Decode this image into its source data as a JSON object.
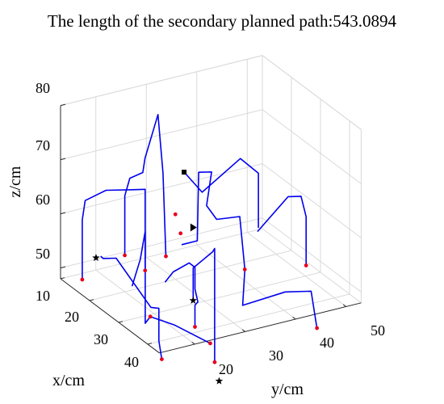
{
  "chart_data": {
    "type": "line3d",
    "title": "The length of the secondary planned path:543.0894",
    "xlabel": "x/cm",
    "ylabel": "y/cm",
    "zlabel": "z/cm",
    "xticks": [
      "10",
      "20",
      "30",
      "40"
    ],
    "yticks": [
      "20",
      "30",
      "40",
      "50"
    ],
    "zticks": [
      "50",
      "60",
      "70",
      "80"
    ],
    "grid": true,
    "colors": {
      "path": "#0000ee",
      "waypoint": "#e8001c",
      "marker": "#000000"
    },
    "path_segments": [
      [
        [
          14,
          15,
          49
        ],
        [
          14,
          15,
          60
        ],
        [
          15,
          15,
          64
        ],
        [
          17,
          18,
          66
        ],
        [
          19,
          22,
          66
        ],
        [
          20,
          24,
          66
        ],
        [
          20,
          24,
          51
        ]
      ],
      [
        [
          13,
          24,
          51
        ],
        [
          13,
          24,
          62
        ],
        [
          13,
          25,
          65
        ],
        [
          14,
          27,
          66
        ],
        [
          13,
          28,
          68
        ],
        [
          14,
          30,
          76
        ],
        [
          14,
          31,
          65
        ],
        [
          15,
          31,
          50
        ]
      ],
      [
        [
          26,
          18,
          52
        ],
        [
          27,
          19,
          57
        ],
        [
          27,
          20,
          62
        ],
        [
          27,
          20,
          45
        ],
        [
          27,
          21,
          46
        ],
        [
          30,
          24,
          45
        ],
        [
          32,
          30,
          41
        ]
      ],
      [
        [
          31,
          25,
          60
        ],
        [
          31,
          28,
          60
        ],
        [
          28,
          30,
          71
        ],
        [
          29,
          32,
          71
        ],
        [
          29,
          31,
          65
        ],
        [
          29,
          33,
          62
        ],
        [
          30,
          37,
          62
        ],
        [
          30,
          38,
          52
        ]
      ],
      [
        [
          30,
          38,
          52
        ],
        [
          31,
          37,
          46
        ],
        [
          30,
          46,
          46
        ],
        [
          32,
          50,
          46
        ],
        [
          34,
          50,
          40
        ]
      ],
      [
        [
          40,
          22,
          54
        ],
        [
          40,
          22,
          60
        ],
        [
          38,
          27,
          61
        ],
        [
          37,
          28,
          61
        ],
        [
          37,
          28,
          40
        ]
      ],
      [
        [
          31,
          40,
          59
        ],
        [
          31,
          46,
          64
        ],
        [
          32,
          48,
          64
        ],
        [
          32,
          49,
          60
        ],
        [
          32,
          49,
          51
        ]
      ],
      [
        [
          23,
          30,
          69
        ],
        [
          24,
          33,
          65
        ],
        [
          25,
          40,
          70
        ],
        [
          26,
          43,
          67
        ],
        [
          26,
          43,
          57
        ]
      ],
      [
        [
          17,
          17,
          54
        ],
        [
          16,
          18,
          53
        ],
        [
          17,
          20,
          53
        ],
        [
          22,
          24,
          45
        ],
        [
          23,
          25,
          45
        ],
        [
          23,
          25,
          39
        ],
        [
          24,
          25,
          36
        ]
      ],
      [
        [
          20,
          28,
          48
        ],
        [
          21,
          29,
          50
        ],
        [
          23,
          31,
          52
        ],
        [
          25,
          31,
          52
        ],
        [
          25,
          31,
          48
        ],
        [
          26,
          31,
          46
        ],
        [
          25,
          31,
          45
        ],
        [
          25,
          31,
          41
        ]
      ]
    ],
    "waypoints": [
      [
        14,
        15,
        49
      ],
      [
        20,
        24,
        51
      ],
      [
        15,
        31,
        50
      ],
      [
        27,
        21,
        46
      ],
      [
        13,
        24,
        51
      ],
      [
        37,
        28,
        40
      ],
      [
        30,
        38,
        52
      ],
      [
        32,
        49,
        51
      ],
      [
        34,
        50,
        40
      ],
      [
        24,
        25,
        36
      ],
      [
        25,
        31,
        41
      ],
      [
        27,
        27,
        60
      ],
      [
        20,
        30,
        60
      ],
      [
        32,
        30,
        41
      ]
    ],
    "star_markers": [
      [
        17,
        16,
        54
      ],
      [
        40,
        22,
        54
      ],
      [
        42,
        26,
        39
      ]
    ],
    "square_marker": [
      23,
      30,
      69
    ],
    "triangle_marker": [
      26,
      30,
      60
    ]
  }
}
